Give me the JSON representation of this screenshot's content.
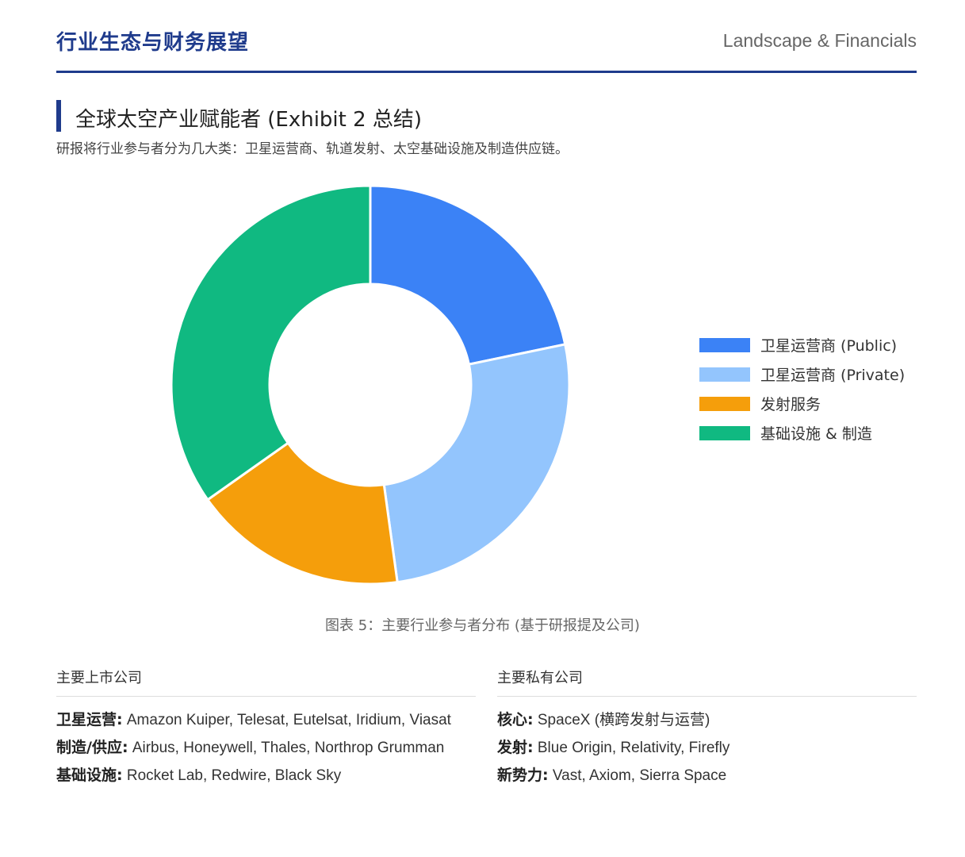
{
  "header": {
    "title": "行业生态与财务展望",
    "subtitle": "Landscape & Financials"
  },
  "section": {
    "title": "全球太空产业赋能者 (Exhibit 2 总结)",
    "description": "研报将行业参与者分为几大类：卫星运营商、轨道发射、太空基础设施及制造供应链。"
  },
  "chart_data": {
    "type": "pie",
    "variant": "donut",
    "categories": [
      "卫星运营商 (Public)",
      "卫星运营商 (Private)",
      "发射服务",
      "基础设施 & 制造"
    ],
    "values": [
      5,
      6,
      4,
      8
    ],
    "colors": [
      "#3b82f6",
      "#93c5fd",
      "#f59e0b",
      "#10b981"
    ],
    "legend_position": "right",
    "caption": "图表 5：主要行业参与者分布 (基于研报提及公司)"
  },
  "public_companies": {
    "heading": "主要上市公司",
    "items": [
      {
        "label": "卫星运营:",
        "text": " Amazon Kuiper, Telesat, Eutelsat, Iridium, Viasat"
      },
      {
        "label": "制造/供应:",
        "text": " Airbus, Honeywell, Thales, Northrop Grumman"
      },
      {
        "label": "基础设施:",
        "text": " Rocket Lab, Redwire, Black Sky"
      }
    ]
  },
  "private_companies": {
    "heading": "主要私有公司",
    "items": [
      {
        "label": "核心:",
        "text": " SpaceX (横跨发射与运营)"
      },
      {
        "label": "发射:",
        "text": " Blue Origin, Relativity, Firefly"
      },
      {
        "label": "新势力:",
        "text": " Vast, Axiom, Sierra Space"
      }
    ]
  }
}
